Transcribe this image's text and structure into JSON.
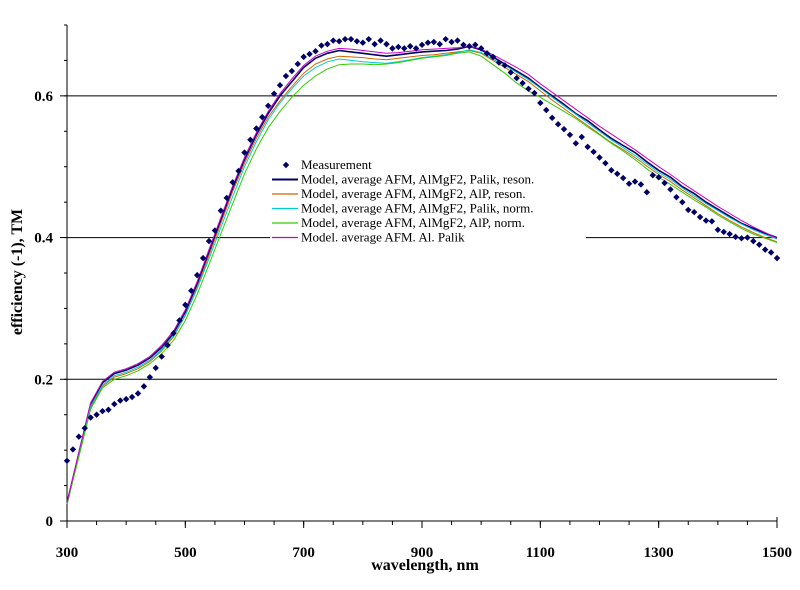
{
  "chart_data": {
    "type": "line",
    "title": "",
    "xlabel": "wavelength, nm",
    "ylabel": "efficiency (-1), TM",
    "xlim": [
      300,
      1500
    ],
    "ylim": [
      0,
      0.7
    ],
    "x_ticks": [
      300,
      500,
      700,
      900,
      1100,
      1300,
      1500
    ],
    "y_ticks": [
      0,
      0.2,
      0.4,
      0.6
    ],
    "y_tick_labels": [
      "0",
      "0.2",
      "0.4",
      "0.6"
    ],
    "grid": "horizontal major lines at 0.2, 0.4, 0.6",
    "legend_position": "center",
    "series": [
      {
        "name": "Measurement",
        "style": "markers",
        "color": "#000066",
        "x": [
          300,
          310,
          320,
          330,
          340,
          350,
          360,
          370,
          380,
          390,
          400,
          410,
          420,
          430,
          440,
          450,
          460,
          470,
          480,
          490,
          500,
          510,
          520,
          530,
          540,
          550,
          560,
          570,
          580,
          590,
          600,
          610,
          620,
          630,
          640,
          650,
          660,
          670,
          680,
          690,
          700,
          710,
          720,
          730,
          740,
          750,
          760,
          770,
          780,
          790,
          800,
          810,
          820,
          830,
          840,
          850,
          860,
          870,
          880,
          890,
          900,
          910,
          920,
          930,
          940,
          950,
          960,
          970,
          980,
          990,
          1000,
          1010,
          1020,
          1030,
          1040,
          1050,
          1060,
          1070,
          1080,
          1090,
          1100,
          1110,
          1120,
          1130,
          1140,
          1150,
          1160,
          1170,
          1180,
          1190,
          1200,
          1210,
          1220,
          1230,
          1240,
          1250,
          1260,
          1270,
          1280,
          1290,
          1300,
          1310,
          1320,
          1330,
          1340,
          1350,
          1360,
          1370,
          1380,
          1390,
          1400,
          1410,
          1420,
          1430,
          1440,
          1450,
          1460,
          1470,
          1480,
          1490,
          1500
        ],
        "values": [
          0.085,
          0.101,
          0.119,
          0.131,
          0.146,
          0.15,
          0.155,
          0.157,
          0.165,
          0.17,
          0.172,
          0.175,
          0.18,
          0.19,
          0.203,
          0.216,
          0.232,
          0.248,
          0.265,
          0.283,
          0.305,
          0.325,
          0.347,
          0.371,
          0.395,
          0.41,
          0.438,
          0.456,
          0.478,
          0.494,
          0.52,
          0.538,
          0.554,
          0.57,
          0.586,
          0.603,
          0.615,
          0.628,
          0.635,
          0.645,
          0.655,
          0.659,
          0.663,
          0.671,
          0.673,
          0.678,
          0.677,
          0.68,
          0.68,
          0.677,
          0.675,
          0.68,
          0.673,
          0.678,
          0.673,
          0.667,
          0.669,
          0.667,
          0.67,
          0.667,
          0.672,
          0.675,
          0.676,
          0.673,
          0.68,
          0.676,
          0.678,
          0.672,
          0.67,
          0.672,
          0.667,
          0.66,
          0.655,
          0.647,
          0.643,
          0.633,
          0.625,
          0.618,
          0.61,
          0.604,
          0.59,
          0.58,
          0.569,
          0.56,
          0.553,
          0.545,
          0.533,
          0.542,
          0.528,
          0.521,
          0.513,
          0.505,
          0.495,
          0.49,
          0.484,
          0.476,
          0.479,
          0.475,
          0.464,
          0.488,
          0.485,
          0.477,
          0.468,
          0.457,
          0.45,
          0.439,
          0.436,
          0.429,
          0.424,
          0.423,
          0.411,
          0.408,
          0.405,
          0.401,
          0.399,
          0.4,
          0.395,
          0.39,
          0.383,
          0.379,
          0.371
        ]
      },
      {
        "name": "Model, average AFM, AlMgF2, Palik, reson.",
        "color": "#000066",
        "x": [
          300,
          320,
          340,
          360,
          380,
          400,
          420,
          440,
          460,
          480,
          500,
          520,
          540,
          560,
          580,
          600,
          620,
          640,
          660,
          680,
          700,
          720,
          740,
          760,
          780,
          800,
          820,
          840,
          860,
          880,
          900,
          920,
          940,
          960,
          980,
          1000,
          1020,
          1040,
          1060,
          1080,
          1100,
          1120,
          1140,
          1160,
          1180,
          1200,
          1220,
          1240,
          1260,
          1280,
          1300,
          1320,
          1340,
          1360,
          1380,
          1400,
          1420,
          1440,
          1460,
          1480,
          1500
        ],
        "values": [
          0.025,
          0.095,
          0.165,
          0.195,
          0.208,
          0.213,
          0.22,
          0.23,
          0.245,
          0.265,
          0.295,
          0.335,
          0.38,
          0.425,
          0.47,
          0.51,
          0.545,
          0.575,
          0.6,
          0.62,
          0.64,
          0.653,
          0.66,
          0.664,
          0.662,
          0.66,
          0.658,
          0.656,
          0.658,
          0.66,
          0.662,
          0.663,
          0.664,
          0.666,
          0.67,
          0.665,
          0.655,
          0.645,
          0.635,
          0.625,
          0.612,
          0.6,
          0.588,
          0.575,
          0.565,
          0.552,
          0.54,
          0.53,
          0.52,
          0.507,
          0.495,
          0.485,
          0.472,
          0.462,
          0.45,
          0.44,
          0.43,
          0.42,
          0.413,
          0.406,
          0.4
        ]
      },
      {
        "name": "Model, average AFM, AlMgF2, AlP, reson.",
        "color": "#cc6600",
        "x": [
          300,
          320,
          340,
          360,
          380,
          400,
          420,
          440,
          460,
          480,
          500,
          520,
          540,
          560,
          580,
          600,
          620,
          640,
          660,
          680,
          700,
          720,
          740,
          760,
          780,
          800,
          820,
          840,
          860,
          880,
          900,
          920,
          940,
          960,
          980,
          1000,
          1020,
          1040,
          1060,
          1080,
          1100,
          1120,
          1140,
          1160,
          1180,
          1200,
          1220,
          1240,
          1260,
          1280,
          1300,
          1320,
          1340,
          1360,
          1380,
          1400,
          1420,
          1440,
          1460,
          1480,
          1500
        ],
        "values": [
          0.024,
          0.092,
          0.16,
          0.19,
          0.203,
          0.208,
          0.215,
          0.225,
          0.24,
          0.26,
          0.29,
          0.33,
          0.375,
          0.42,
          0.465,
          0.505,
          0.54,
          0.57,
          0.593,
          0.613,
          0.632,
          0.645,
          0.652,
          0.656,
          0.655,
          0.654,
          0.652,
          0.651,
          0.653,
          0.655,
          0.657,
          0.658,
          0.66,
          0.662,
          0.664,
          0.66,
          0.65,
          0.64,
          0.63,
          0.62,
          0.607,
          0.594,
          0.582,
          0.57,
          0.558,
          0.546,
          0.534,
          0.524,
          0.513,
          0.501,
          0.489,
          0.479,
          0.467,
          0.456,
          0.445,
          0.434,
          0.424,
          0.415,
          0.407,
          0.4,
          0.394
        ]
      },
      {
        "name": "Model, average AFM, AlMgF2, Palik, norm.",
        "color": "#00cccc",
        "x": [
          300,
          320,
          340,
          360,
          380,
          400,
          420,
          440,
          460,
          480,
          500,
          520,
          540,
          560,
          580,
          600,
          620,
          640,
          660,
          680,
          700,
          720,
          740,
          760,
          780,
          800,
          820,
          840,
          860,
          880,
          900,
          920,
          940,
          960,
          980,
          1000,
          1020,
          1040,
          1060,
          1080,
          1100,
          1120,
          1140,
          1160,
          1180,
          1200,
          1220,
          1240,
          1260,
          1280,
          1300,
          1320,
          1340,
          1360,
          1380,
          1400,
          1420,
          1440,
          1460,
          1480,
          1500
        ],
        "values": [
          0.025,
          0.093,
          0.162,
          0.192,
          0.205,
          0.21,
          0.217,
          0.227,
          0.242,
          0.262,
          0.29,
          0.328,
          0.37,
          0.414,
          0.458,
          0.5,
          0.535,
          0.566,
          0.59,
          0.61,
          0.628,
          0.64,
          0.648,
          0.652,
          0.65,
          0.648,
          0.647,
          0.646,
          0.648,
          0.651,
          0.654,
          0.656,
          0.658,
          0.661,
          0.665,
          0.661,
          0.652,
          0.643,
          0.633,
          0.623,
          0.611,
          0.598,
          0.586,
          0.574,
          0.562,
          0.55,
          0.538,
          0.527,
          0.516,
          0.504,
          0.492,
          0.482,
          0.47,
          0.459,
          0.448,
          0.438,
          0.428,
          0.419,
          0.411,
          0.404,
          0.398
        ]
      },
      {
        "name": "Model, average AFM, AlMgF2, AlP, norm.",
        "color": "#33cc00",
        "x": [
          300,
          320,
          340,
          360,
          380,
          400,
          420,
          440,
          460,
          480,
          500,
          520,
          540,
          560,
          580,
          600,
          620,
          640,
          660,
          680,
          700,
          720,
          740,
          760,
          780,
          800,
          820,
          840,
          860,
          880,
          900,
          920,
          940,
          960,
          980,
          1000,
          1020,
          1040,
          1060,
          1080,
          1100,
          1120,
          1140,
          1160,
          1180,
          1200,
          1220,
          1240,
          1260,
          1280,
          1300,
          1320,
          1340,
          1360,
          1380,
          1400,
          1420,
          1440,
          1460,
          1480,
          1500
        ],
        "values": [
          0.024,
          0.09,
          0.158,
          0.188,
          0.2,
          0.205,
          0.212,
          0.222,
          0.236,
          0.255,
          0.283,
          0.32,
          0.362,
          0.405,
          0.448,
          0.49,
          0.525,
          0.555,
          0.578,
          0.598,
          0.615,
          0.628,
          0.638,
          0.644,
          0.645,
          0.645,
          0.644,
          0.645,
          0.647,
          0.65,
          0.653,
          0.655,
          0.657,
          0.66,
          0.662,
          0.656,
          0.644,
          0.632,
          0.618,
          0.607,
          0.598,
          0.588,
          0.578,
          0.568,
          0.556,
          0.545,
          0.533,
          0.522,
          0.51,
          0.497,
          0.485,
          0.475,
          0.464,
          0.453,
          0.443,
          0.432,
          0.422,
          0.413,
          0.405,
          0.399,
          0.393
        ]
      },
      {
        "name": "Model. average AFM. Al. Palik",
        "color": "#cc00cc",
        "x": [
          300,
          320,
          340,
          360,
          380,
          400,
          420,
          440,
          460,
          480,
          500,
          520,
          540,
          560,
          580,
          600,
          620,
          640,
          660,
          680,
          700,
          720,
          740,
          760,
          780,
          800,
          820,
          840,
          860,
          880,
          900,
          920,
          940,
          960,
          980,
          1000,
          1020,
          1040,
          1060,
          1080,
          1100,
          1120,
          1140,
          1160,
          1180,
          1200,
          1220,
          1240,
          1260,
          1280,
          1300,
          1320,
          1340,
          1360,
          1380,
          1400,
          1420,
          1440,
          1460,
          1480,
          1500
        ],
        "values": [
          0.026,
          0.097,
          0.167,
          0.197,
          0.21,
          0.215,
          0.222,
          0.232,
          0.248,
          0.268,
          0.298,
          0.338,
          0.383,
          0.428,
          0.473,
          0.513,
          0.548,
          0.578,
          0.603,
          0.624,
          0.643,
          0.656,
          0.663,
          0.667,
          0.666,
          0.664,
          0.662,
          0.66,
          0.661,
          0.663,
          0.665,
          0.666,
          0.667,
          0.668,
          0.67,
          0.666,
          0.658,
          0.649,
          0.64,
          0.63,
          0.617,
          0.605,
          0.593,
          0.581,
          0.569,
          0.557,
          0.546,
          0.535,
          0.524,
          0.512,
          0.5,
          0.489,
          0.477,
          0.466,
          0.455,
          0.444,
          0.434,
          0.424,
          0.415,
          0.407,
          0.399
        ]
      }
    ]
  }
}
